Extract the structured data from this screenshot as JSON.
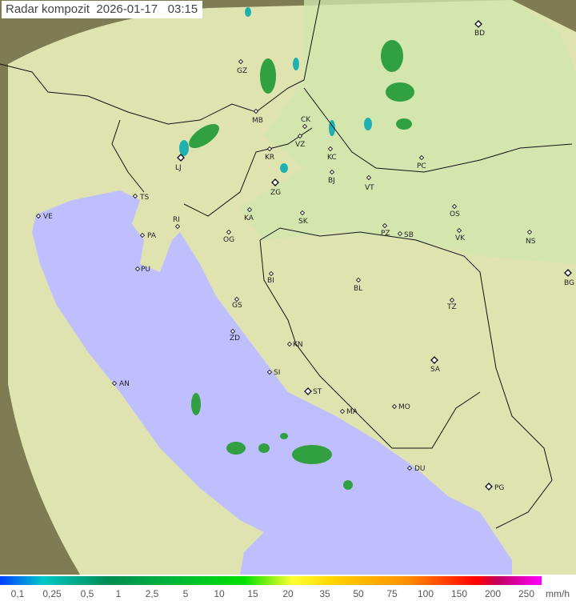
{
  "title": "Radar kompozit",
  "date": "2026-01-17",
  "time": "03:15",
  "legend": {
    "ticks": [
      "0,1",
      "0,25",
      "0,5",
      "1",
      "2,5",
      "5",
      "10",
      "15",
      "20",
      "35",
      "50",
      "75",
      "100",
      "150",
      "200",
      "250"
    ],
    "unit": "mm/h"
  },
  "colors": {
    "sea": "#bfbfff",
    "land": "#dcdca0",
    "coverage_land": "#e6eab8",
    "outside": "#8c8a5c",
    "echo_green": "#30a040",
    "echo_cyan": "#20b0b0"
  },
  "cities": [
    "GZ",
    "BD",
    "MB",
    "CK",
    "VZ",
    "KR",
    "KC",
    "PC",
    "LJ",
    "ZG",
    "BJ",
    "VT",
    "TS",
    "VE",
    "RI",
    "KA",
    "SK",
    "OS",
    "PA",
    "OG",
    "PZ",
    "SB",
    "VK",
    "NS",
    "PU",
    "BI",
    "BL",
    "BG",
    "GS",
    "TZ",
    "ZD",
    "KN",
    "SA",
    "AN",
    "SI",
    "ST",
    "MA",
    "MO",
    "DU",
    "PG"
  ]
}
